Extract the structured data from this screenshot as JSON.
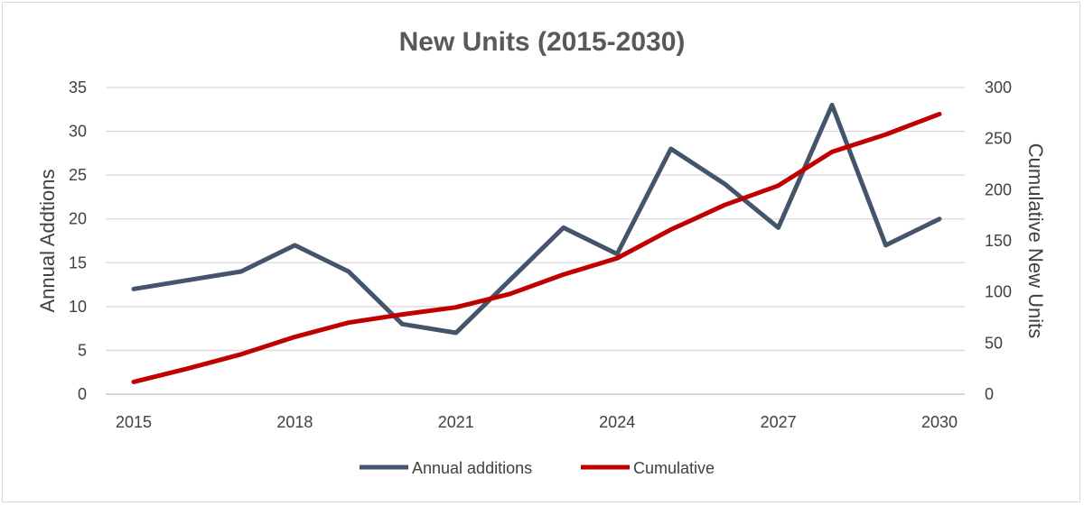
{
  "chart_data": {
    "type": "line",
    "title": "New Units (2015-2030)",
    "x": [
      2015,
      2016,
      2017,
      2018,
      2019,
      2020,
      2021,
      2022,
      2023,
      2024,
      2025,
      2026,
      2027,
      2028,
      2029,
      2030
    ],
    "x_tick_labels": [
      "2015",
      "2018",
      "2021",
      "2024",
      "2027",
      "2030"
    ],
    "xlim": [
      2015,
      2030
    ],
    "ylabel": "Annual Addtions",
    "ylim": [
      0,
      35
    ],
    "y_ticks": [
      0,
      5,
      10,
      15,
      20,
      25,
      30,
      35
    ],
    "y2label": "Cumulative New Units",
    "y2lim": [
      0,
      300
    ],
    "y2_ticks": [
      0,
      50,
      100,
      150,
      200,
      250,
      300
    ],
    "grid": true,
    "legend_position": "bottom",
    "series": [
      {
        "name": "Annual additions",
        "axis": "left",
        "color": "#44546a",
        "values": [
          12,
          13,
          14,
          17,
          14,
          8,
          7,
          13,
          19,
          16,
          28,
          24,
          19,
          33,
          17,
          20
        ]
      },
      {
        "name": "Cumulative",
        "axis": "right",
        "color": "#c00000",
        "values": [
          12,
          25,
          39,
          56,
          70,
          78,
          85,
          98,
          117,
          133,
          161,
          185,
          204,
          237,
          254,
          274
        ]
      }
    ]
  }
}
